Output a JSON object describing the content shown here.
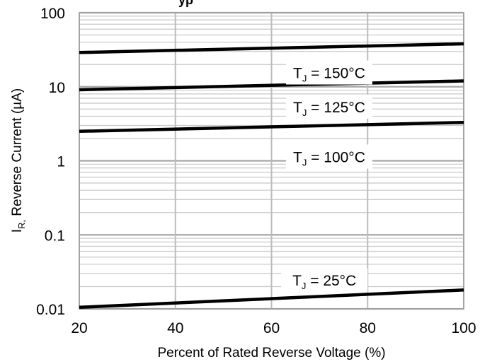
{
  "chart_data": {
    "type": "line",
    "title": "",
    "xlabel": "Percent of Rated Reverse Voltage (%)",
    "ylabel": {
      "main": "I",
      "sub": "R,",
      "rest": " Reverse Current (µA)"
    },
    "x_ticks": [
      "20",
      "40",
      "60",
      "80",
      "100"
    ],
    "y_ticks": [
      "0.01",
      "0.1",
      "1",
      "10",
      "100"
    ],
    "xlim": [
      20,
      100
    ],
    "ylim": [
      0.01,
      100
    ],
    "yscale": "log",
    "grid": true,
    "series": [
      {
        "name": "150°C",
        "label": {
          "pre": "T",
          "sub": "J",
          "post": " = 150°C"
        },
        "x": [
          20,
          100
        ],
        "y": [
          29,
          38
        ]
      },
      {
        "name": "125°C",
        "label": {
          "pre": "T",
          "sub": "J",
          "post": " = 125°C"
        },
        "x": [
          20,
          100
        ],
        "y": [
          9.1,
          12
        ]
      },
      {
        "name": "100°C",
        "label": {
          "pre": "T",
          "sub": "J",
          "post": " = 100°C"
        },
        "x": [
          20,
          100
        ],
        "y": [
          2.5,
          3.3
        ]
      },
      {
        "name": "25°C",
        "label": {
          "pre": "T",
          "sub": "J",
          "post": " = 25°C"
        },
        "x": [
          20,
          100
        ],
        "y": [
          0.0105,
          0.018
        ]
      }
    ]
  }
}
